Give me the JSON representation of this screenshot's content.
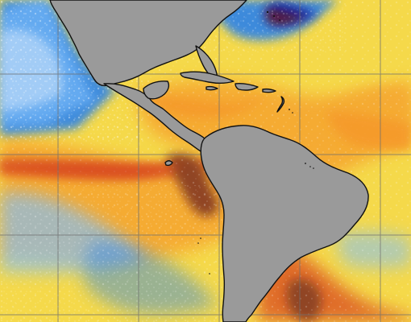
{
  "map": {
    "palette": {
      "land": "#9a9a9a",
      "coast": "#111111",
      "grid": "#6f6f6f",
      "ocean_base": "#f5d94a",
      "ocean_orange": "#f59a2a",
      "ocean_red": "#d8421d",
      "ocean_dark": "#6a0c12",
      "cold_blue": "#2f84e8",
      "cold_light": "#7fc0ff",
      "cold_white": "#eef6ff"
    },
    "regions": [
      "north-america",
      "central-america",
      "south-america",
      "caribbean-islands",
      "pacific-ocean",
      "atlantic-ocean"
    ]
  }
}
